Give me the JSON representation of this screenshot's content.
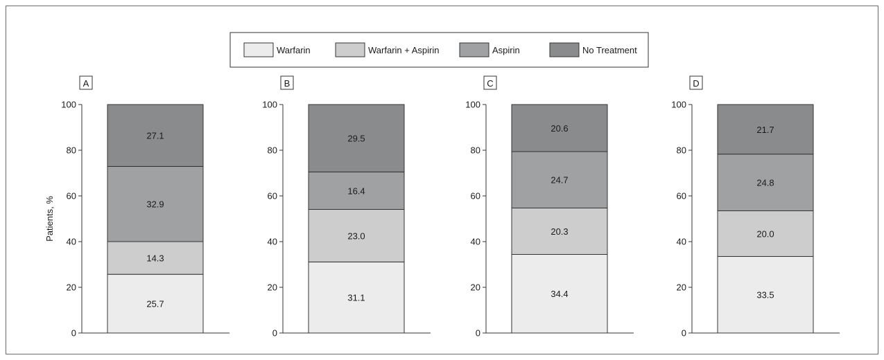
{
  "legend": {
    "items": [
      {
        "label": "Warfarin",
        "color": "#ececec"
      },
      {
        "label": "Warfarin + Aspirin",
        "color": "#cdcdcd"
      },
      {
        "label": "Aspirin",
        "color": "#9fa1a3"
      },
      {
        "label": "No Treatment",
        "color": "#8a8b8d"
      }
    ]
  },
  "chart_data": {
    "type": "bar",
    "stacked": true,
    "ylabel": "Patients, %",
    "ylim": [
      0,
      100
    ],
    "yticks": [
      0,
      20,
      40,
      60,
      80,
      100
    ],
    "legend_position": "top-center",
    "grid": false,
    "series_names": [
      "Warfarin",
      "Warfarin + Aspirin",
      "Aspirin",
      "No Treatment"
    ],
    "panels": [
      {
        "label": "A",
        "values": [
          25.7,
          14.3,
          32.9,
          27.1
        ]
      },
      {
        "label": "B",
        "values": [
          31.1,
          23.0,
          16.4,
          29.5
        ]
      },
      {
        "label": "C",
        "values": [
          34.4,
          20.3,
          24.7,
          20.6
        ]
      },
      {
        "label": "D",
        "values": [
          33.5,
          20.0,
          24.8,
          21.7
        ]
      }
    ]
  }
}
